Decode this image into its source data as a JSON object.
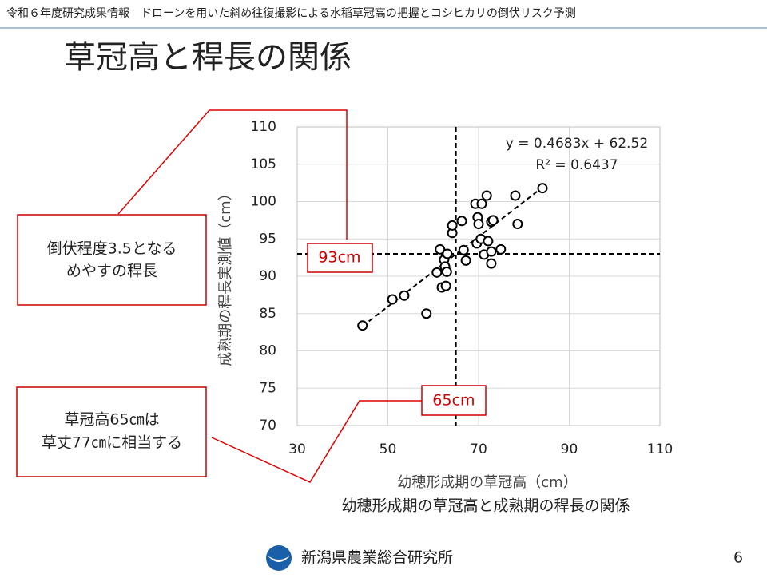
{
  "header": {
    "text": "令和６年度研究成果情報　ドローンを用いた斜め往復撮影による水稲草冠高の把握とコシヒカリの倒伏リスク予測"
  },
  "title": "草冠高と稈長の関係",
  "callouts": [
    {
      "lines": [
        "倒伏程度3.5となる",
        "めやすの稈長"
      ]
    },
    {
      "lines": [
        "草冠高65㎝は",
        "草丈77㎝に相当する"
      ]
    }
  ],
  "chart_data": {
    "type": "scatter",
    "x_label": "幼穂形成期の草冠高（cm）",
    "y_label": "成熟期の稈長実測値（cm）",
    "caption": "幼穂形成期の草冠高と成熟期の稈長の関係",
    "x": [
      44.4,
      51.0,
      53.6,
      58.5,
      61.5,
      60.8,
      62.4,
      62.6,
      61.9,
      62.8,
      63.0,
      63.1,
      64.2,
      64.2,
      66.3,
      66.7,
      67.2,
      69.6,
      70.5,
      69.3,
      70.7,
      71.8,
      69.8,
      70.0,
      72.1,
      71.2,
      72.8,
      72.8,
      72.8,
      73.2,
      74.9,
      78.1,
      78.6,
      84.1
    ],
    "values": [
      83.4,
      86.9,
      87.4,
      85.0,
      93.6,
      90.5,
      92.2,
      91.3,
      88.5,
      88.7,
      90.6,
      93.0,
      95.8,
      96.8,
      97.4,
      93.5,
      92.1,
      94.4,
      95.0,
      99.7,
      99.7,
      100.8,
      97.9,
      97.0,
      94.7,
      92.9,
      93.3,
      91.7,
      97.3,
      97.5,
      93.6,
      100.8,
      97.0,
      101.8
    ],
    "color": "#000000",
    "xlim": [
      30,
      110
    ],
    "xticks": [
      30,
      50,
      70,
      90,
      110
    ],
    "ylim": [
      70,
      110
    ],
    "yticks": [
      70,
      75,
      80,
      85,
      90,
      95,
      100,
      105,
      110
    ],
    "grid": true,
    "trendline": {
      "slope": 0.4683,
      "intercept": 62.52,
      "equation": "y = 0.4683x + 62.52",
      "r2": "R² = 0.6437"
    },
    "reference_x": {
      "value": 65,
      "label": "65cm"
    },
    "reference_y": {
      "value": 93,
      "label": "93cm"
    }
  },
  "footer": {
    "org": "新潟県農業総合研究所",
    "page": "6"
  }
}
